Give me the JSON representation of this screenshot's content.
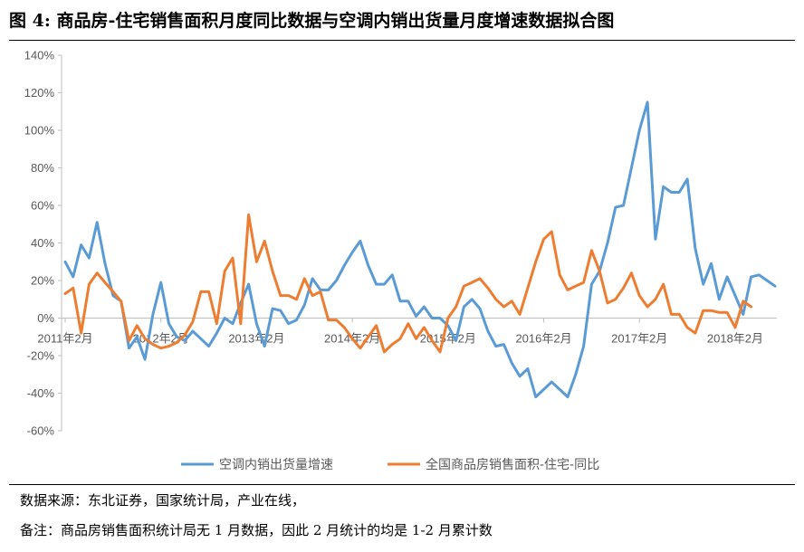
{
  "title": "图  4:  商品房-住宅销售面积月度同比数据与空调内销出货量月度增速数据拟合图",
  "footer": {
    "source": "数据来源：东北证券，国家统计局，产业在线，",
    "note": "备注：商品房销售面积统计局无 1 月数据，因此 2 月统计的均是 1-2 月累计数"
  },
  "chart_data": {
    "type": "line",
    "title": "",
    "xlabel": "",
    "ylabel": "",
    "ylim": [
      -60,
      140
    ],
    "ytick_values": [
      -60,
      -40,
      -20,
      0,
      20,
      40,
      60,
      80,
      100,
      120,
      140
    ],
    "ytick_labels": [
      "-60%",
      "-40%",
      "-20%",
      "0%",
      "20%",
      "40%",
      "60%",
      "80%",
      "100%",
      "120%",
      "140%"
    ],
    "x_start": "2011-02",
    "x_ticks": [
      {
        "month_index": 0,
        "label": "2011年2月"
      },
      {
        "month_index": 12,
        "label": "2012年2月"
      },
      {
        "month_index": 24,
        "label": "2013年2月"
      },
      {
        "month_index": 36,
        "label": "2014年2月"
      },
      {
        "month_index": 48,
        "label": "2015年2月"
      },
      {
        "month_index": 60,
        "label": "2016年2月"
      },
      {
        "month_index": 72,
        "label": "2017年2月"
      },
      {
        "month_index": 84,
        "label": "2018年2月"
      }
    ],
    "legend_position": "bottom",
    "grid": false,
    "series": [
      {
        "name": "空调内销出货量增速",
        "color": "#5B9BD5",
        "values": [
          30,
          22,
          39,
          32,
          51,
          29,
          12,
          9,
          -16,
          -10,
          -22,
          2,
          19,
          -3,
          -10,
          -12,
          -7,
          -11,
          -15,
          -8,
          0,
          -3,
          8,
          18,
          -3,
          -15,
          5,
          4,
          -3,
          -1,
          7,
          21,
          15,
          15,
          20,
          28,
          35,
          41,
          28,
          18,
          18,
          23,
          9,
          9,
          1,
          6,
          0,
          0,
          -4,
          -12,
          6,
          10,
          5,
          -7,
          -15,
          -14,
          -24,
          -31,
          -27,
          -42,
          -38,
          -34,
          -38,
          -42,
          -30,
          -15,
          18,
          25,
          40,
          59,
          60,
          80,
          100,
          115,
          42,
          70,
          67,
          67,
          74,
          37,
          18,
          29,
          10,
          22,
          12,
          2,
          22,
          23,
          20,
          17
        ]
      },
      {
        "name": "全国商品房销售面积-住宅-同比",
        "color": "#ED7D31",
        "values": [
          13,
          16,
          -8,
          18,
          24,
          19,
          14,
          9,
          -12,
          -4,
          -11,
          -14,
          -16,
          -15,
          -13,
          -9,
          -2,
          14,
          14,
          -3,
          25,
          32,
          -3,
          55,
          30,
          41,
          25,
          12,
          12,
          10,
          21,
          12,
          14,
          -1,
          -1,
          -5,
          -11,
          -16,
          -10,
          -4,
          -18,
          -14,
          -11,
          -3,
          -11,
          -5,
          -12,
          -18,
          0,
          6,
          17,
          19,
          21,
          16,
          10,
          6,
          9,
          2,
          16,
          30,
          42,
          46,
          23,
          15,
          17,
          19,
          36,
          25,
          8,
          10,
          16,
          24,
          12,
          6,
          10,
          18,
          2,
          2,
          -5,
          -8,
          4,
          4,
          3,
          3,
          -5,
          9,
          6
        ]
      }
    ]
  }
}
